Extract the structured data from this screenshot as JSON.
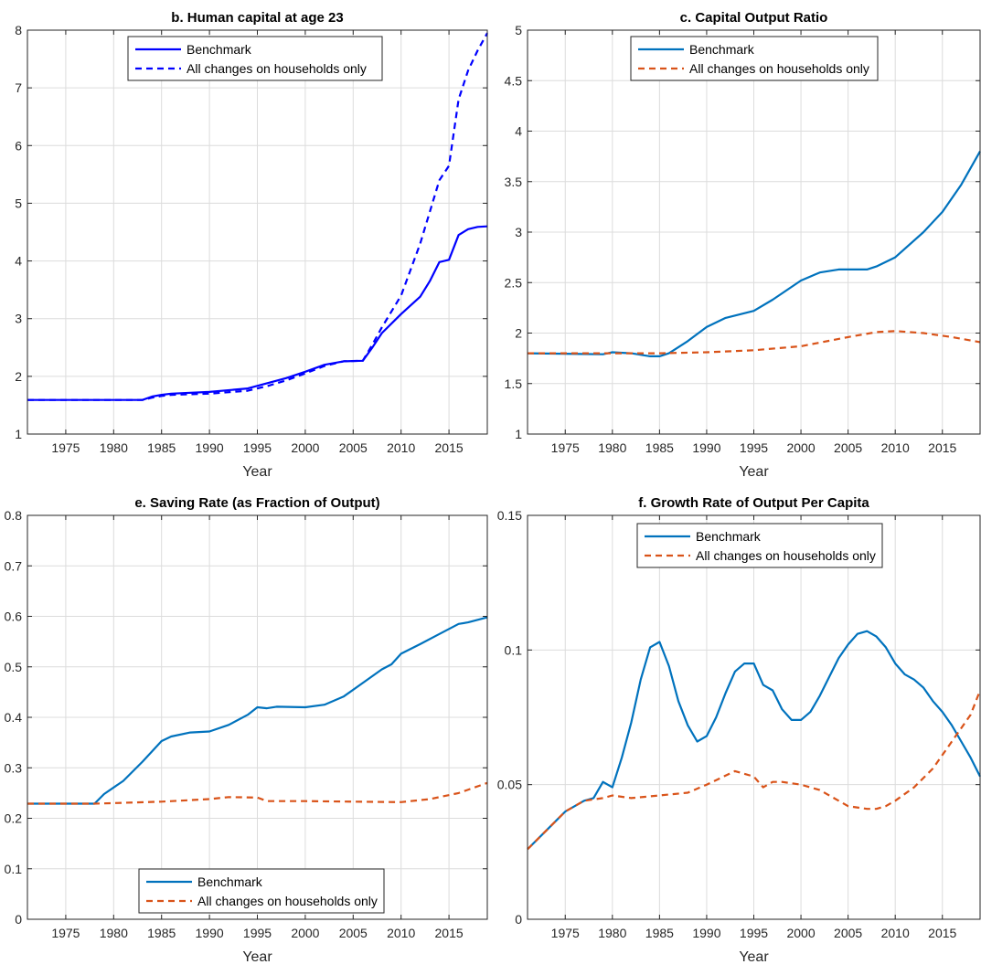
{
  "chart_data": [
    {
      "id": "b",
      "type": "line",
      "title": "b. Human capital at age 23",
      "xlabel": "Year",
      "ylabel": "",
      "xlim": [
        1971,
        2019
      ],
      "ylim": [
        1,
        8
      ],
      "xticks": [
        1975,
        1980,
        1985,
        1990,
        1995,
        2000,
        2005,
        2010,
        2015
      ],
      "yticks": [
        1,
        2,
        3,
        4,
        5,
        6,
        7,
        8
      ],
      "ytick_labels": [
        "1",
        "2",
        "3",
        "4",
        "5",
        "6",
        "7",
        "8"
      ],
      "grid": true,
      "legend_position": "top-center",
      "series": [
        {
          "name": "Benchmark",
          "style": "solid",
          "color": "#0000FF",
          "points": [
            [
              1971,
              1.59
            ],
            [
              1983,
              1.59
            ],
            [
              1984,
              1.65
            ],
            [
              1985,
              1.68
            ],
            [
              1986,
              1.7
            ],
            [
              1990,
              1.73
            ],
            [
              1994,
              1.79
            ],
            [
              1996,
              1.88
            ],
            [
              1998,
              1.97
            ],
            [
              2000,
              2.08
            ],
            [
              2002,
              2.2
            ],
            [
              2004,
              2.26
            ],
            [
              2006,
              2.27
            ],
            [
              2007,
              2.5
            ],
            [
              2008,
              2.75
            ],
            [
              2010,
              3.08
            ],
            [
              2012,
              3.38
            ],
            [
              2013,
              3.65
            ],
            [
              2014,
              3.98
            ],
            [
              2015,
              4.02
            ],
            [
              2016,
              4.45
            ],
            [
              2017,
              4.55
            ],
            [
              2018,
              4.59
            ],
            [
              2019,
              4.6
            ]
          ]
        },
        {
          "name": "All changes on households only",
          "style": "dashed",
          "color": "#0000FF",
          "points": [
            [
              1971,
              1.59
            ],
            [
              1983,
              1.59
            ],
            [
              1984,
              1.63
            ],
            [
              1985,
              1.66
            ],
            [
              1986,
              1.68
            ],
            [
              1990,
              1.7
            ],
            [
              1994,
              1.75
            ],
            [
              1996,
              1.83
            ],
            [
              1998,
              1.93
            ],
            [
              2000,
              2.05
            ],
            [
              2002,
              2.18
            ],
            [
              2004,
              2.26
            ],
            [
              2006,
              2.27
            ],
            [
              2007,
              2.55
            ],
            [
              2008,
              2.85
            ],
            [
              2010,
              3.4
            ],
            [
              2012,
              4.3
            ],
            [
              2013,
              4.85
            ],
            [
              2014,
              5.4
            ],
            [
              2015,
              5.65
            ],
            [
              2016,
              6.8
            ],
            [
              2017,
              7.3
            ],
            [
              2018,
              7.65
            ],
            [
              2019,
              7.95
            ]
          ]
        }
      ]
    },
    {
      "id": "c",
      "type": "line",
      "title": "c. Capital Output Ratio",
      "xlabel": "Year",
      "ylabel": "",
      "xlim": [
        1971,
        2019
      ],
      "ylim": [
        1,
        5
      ],
      "xticks": [
        1975,
        1980,
        1985,
        1990,
        1995,
        2000,
        2005,
        2010,
        2015
      ],
      "yticks": [
        1,
        1.5,
        2,
        2.5,
        3,
        3.5,
        4,
        4.5,
        5
      ],
      "ytick_labels": [
        "1",
        "1.5",
        "2",
        "2.5",
        "3",
        "3.5",
        "4",
        "4.5",
        "5"
      ],
      "grid": true,
      "legend_position": "top-center",
      "series": [
        {
          "name": "Benchmark",
          "style": "solid",
          "color": "#0072BD",
          "points": [
            [
              1971,
              1.8
            ],
            [
              1979,
              1.79
            ],
            [
              1980,
              1.81
            ],
            [
              1982,
              1.8
            ],
            [
              1984,
              1.77
            ],
            [
              1985,
              1.77
            ],
            [
              1986,
              1.8
            ],
            [
              1988,
              1.92
            ],
            [
              1990,
              2.06
            ],
            [
              1992,
              2.15
            ],
            [
              1995,
              2.22
            ],
            [
              1997,
              2.33
            ],
            [
              2000,
              2.52
            ],
            [
              2002,
              2.6
            ],
            [
              2004,
              2.63
            ],
            [
              2007,
              2.63
            ],
            [
              2008,
              2.66
            ],
            [
              2010,
              2.75
            ],
            [
              2013,
              3.0
            ],
            [
              2015,
              3.2
            ],
            [
              2017,
              3.47
            ],
            [
              2019,
              3.8
            ]
          ]
        },
        {
          "name": "All changes on households only",
          "style": "dashed",
          "color": "#D95319",
          "points": [
            [
              1971,
              1.8
            ],
            [
              1980,
              1.8
            ],
            [
              1985,
              1.8
            ],
            [
              1990,
              1.81
            ],
            [
              1995,
              1.83
            ],
            [
              2000,
              1.87
            ],
            [
              2005,
              1.96
            ],
            [
              2008,
              2.01
            ],
            [
              2010,
              2.02
            ],
            [
              2013,
              2.0
            ],
            [
              2016,
              1.96
            ],
            [
              2019,
              1.91
            ]
          ]
        }
      ]
    },
    {
      "id": "e",
      "type": "line",
      "title": "e. Saving Rate (as Fraction of Output)",
      "xlabel": "Year",
      "ylabel": "",
      "xlim": [
        1971,
        2019
      ],
      "ylim": [
        0,
        0.8
      ],
      "xticks": [
        1975,
        1980,
        1985,
        1990,
        1995,
        2000,
        2005,
        2010,
        2015
      ],
      "yticks": [
        0,
        0.1,
        0.2,
        0.3,
        0.4,
        0.5,
        0.6,
        0.7,
        0.8
      ],
      "ytick_labels": [
        "0",
        "0.1",
        "0.2",
        "0.3",
        "0.4",
        "0.5",
        "0.6",
        "0.7",
        "0.8"
      ],
      "grid": true,
      "legend_position": "bottom-center",
      "series": [
        {
          "name": "Benchmark",
          "style": "solid",
          "color": "#0072BD",
          "points": [
            [
              1971,
              0.229
            ],
            [
              1978,
              0.229
            ],
            [
              1979,
              0.248
            ],
            [
              1981,
              0.274
            ],
            [
              1983,
              0.312
            ],
            [
              1985,
              0.353
            ],
            [
              1986,
              0.362
            ],
            [
              1988,
              0.37
            ],
            [
              1990,
              0.372
            ],
            [
              1992,
              0.385
            ],
            [
              1994,
              0.405
            ],
            [
              1995,
              0.42
            ],
            [
              1996,
              0.418
            ],
            [
              1997,
              0.421
            ],
            [
              2000,
              0.42
            ],
            [
              2002,
              0.425
            ],
            [
              2004,
              0.441
            ],
            [
              2006,
              0.468
            ],
            [
              2008,
              0.495
            ],
            [
              2009,
              0.505
            ],
            [
              2010,
              0.526
            ],
            [
              2012,
              0.545
            ],
            [
              2014,
              0.565
            ],
            [
              2015,
              0.575
            ],
            [
              2016,
              0.585
            ],
            [
              2017,
              0.588
            ],
            [
              2019,
              0.598
            ]
          ]
        },
        {
          "name": "All changes on households only",
          "style": "dashed",
          "color": "#D95319",
          "points": [
            [
              1971,
              0.229
            ],
            [
              1978,
              0.229
            ],
            [
              1985,
              0.233
            ],
            [
              1990,
              0.238
            ],
            [
              1992,
              0.242
            ],
            [
              1995,
              0.241
            ],
            [
              1996,
              0.234
            ],
            [
              2000,
              0.234
            ],
            [
              2005,
              0.233
            ],
            [
              2010,
              0.232
            ],
            [
              2013,
              0.238
            ],
            [
              2016,
              0.25
            ],
            [
              2019,
              0.27
            ]
          ]
        }
      ]
    },
    {
      "id": "f",
      "type": "line",
      "title": "f. Growth Rate of Output Per Capita",
      "xlabel": "Year",
      "ylabel": "",
      "xlim": [
        1971,
        2019
      ],
      "ylim": [
        0,
        0.15
      ],
      "xticks": [
        1975,
        1980,
        1985,
        1990,
        1995,
        2000,
        2005,
        2010,
        2015
      ],
      "yticks": [
        0,
        0.05,
        0.1,
        0.15
      ],
      "ytick_labels": [
        "0",
        "0.05",
        "0.1",
        "0.15"
      ],
      "grid": true,
      "legend_position": "top-center",
      "series": [
        {
          "name": "Benchmark",
          "style": "solid",
          "color": "#0072BD",
          "points": [
            [
              1971,
              0.026
            ],
            [
              1973,
              0.033
            ],
            [
              1975,
              0.04
            ],
            [
              1977,
              0.044
            ],
            [
              1978,
              0.045
            ],
            [
              1979,
              0.051
            ],
            [
              1980,
              0.049
            ],
            [
              1981,
              0.06
            ],
            [
              1982,
              0.073
            ],
            [
              1983,
              0.089
            ],
            [
              1984,
              0.101
            ],
            [
              1985,
              0.103
            ],
            [
              1986,
              0.094
            ],
            [
              1987,
              0.081
            ],
            [
              1988,
              0.072
            ],
            [
              1989,
              0.066
            ],
            [
              1990,
              0.068
            ],
            [
              1991,
              0.075
            ],
            [
              1992,
              0.084
            ],
            [
              1993,
              0.092
            ],
            [
              1994,
              0.095
            ],
            [
              1995,
              0.095
            ],
            [
              1996,
              0.087
            ],
            [
              1997,
              0.085
            ],
            [
              1998,
              0.078
            ],
            [
              1999,
              0.074
            ],
            [
              2000,
              0.074
            ],
            [
              2001,
              0.077
            ],
            [
              2002,
              0.083
            ],
            [
              2003,
              0.09
            ],
            [
              2004,
              0.097
            ],
            [
              2005,
              0.102
            ],
            [
              2006,
              0.106
            ],
            [
              2007,
              0.107
            ],
            [
              2008,
              0.105
            ],
            [
              2009,
              0.101
            ],
            [
              2010,
              0.095
            ],
            [
              2011,
              0.091
            ],
            [
              2012,
              0.089
            ],
            [
              2013,
              0.086
            ],
            [
              2014,
              0.081
            ],
            [
              2015,
              0.077
            ],
            [
              2016,
              0.072
            ],
            [
              2017,
              0.066
            ],
            [
              2018,
              0.06
            ],
            [
              2019,
              0.053
            ]
          ]
        },
        {
          "name": "All changes on households only",
          "style": "dashed",
          "color": "#D95319",
          "points": [
            [
              1971,
              0.026
            ],
            [
              1973,
              0.033
            ],
            [
              1975,
              0.04
            ],
            [
              1977,
              0.044
            ],
            [
              1979,
              0.045
            ],
            [
              1980,
              0.046
            ],
            [
              1982,
              0.045
            ],
            [
              1985,
              0.046
            ],
            [
              1988,
              0.047
            ],
            [
              1990,
              0.05
            ],
            [
              1993,
              0.055
            ],
            [
              1995,
              0.053
            ],
            [
              1996,
              0.049
            ],
            [
              1997,
              0.051
            ],
            [
              1998,
              0.051
            ],
            [
              2000,
              0.05
            ],
            [
              2002,
              0.048
            ],
            [
              2004,
              0.044
            ],
            [
              2005,
              0.042
            ],
            [
              2007,
              0.041
            ],
            [
              2008,
              0.041
            ],
            [
              2009,
              0.042
            ],
            [
              2010,
              0.044
            ],
            [
              2012,
              0.049
            ],
            [
              2014,
              0.056
            ],
            [
              2016,
              0.066
            ],
            [
              2018,
              0.076
            ],
            [
              2019,
              0.085
            ]
          ]
        }
      ]
    }
  ]
}
